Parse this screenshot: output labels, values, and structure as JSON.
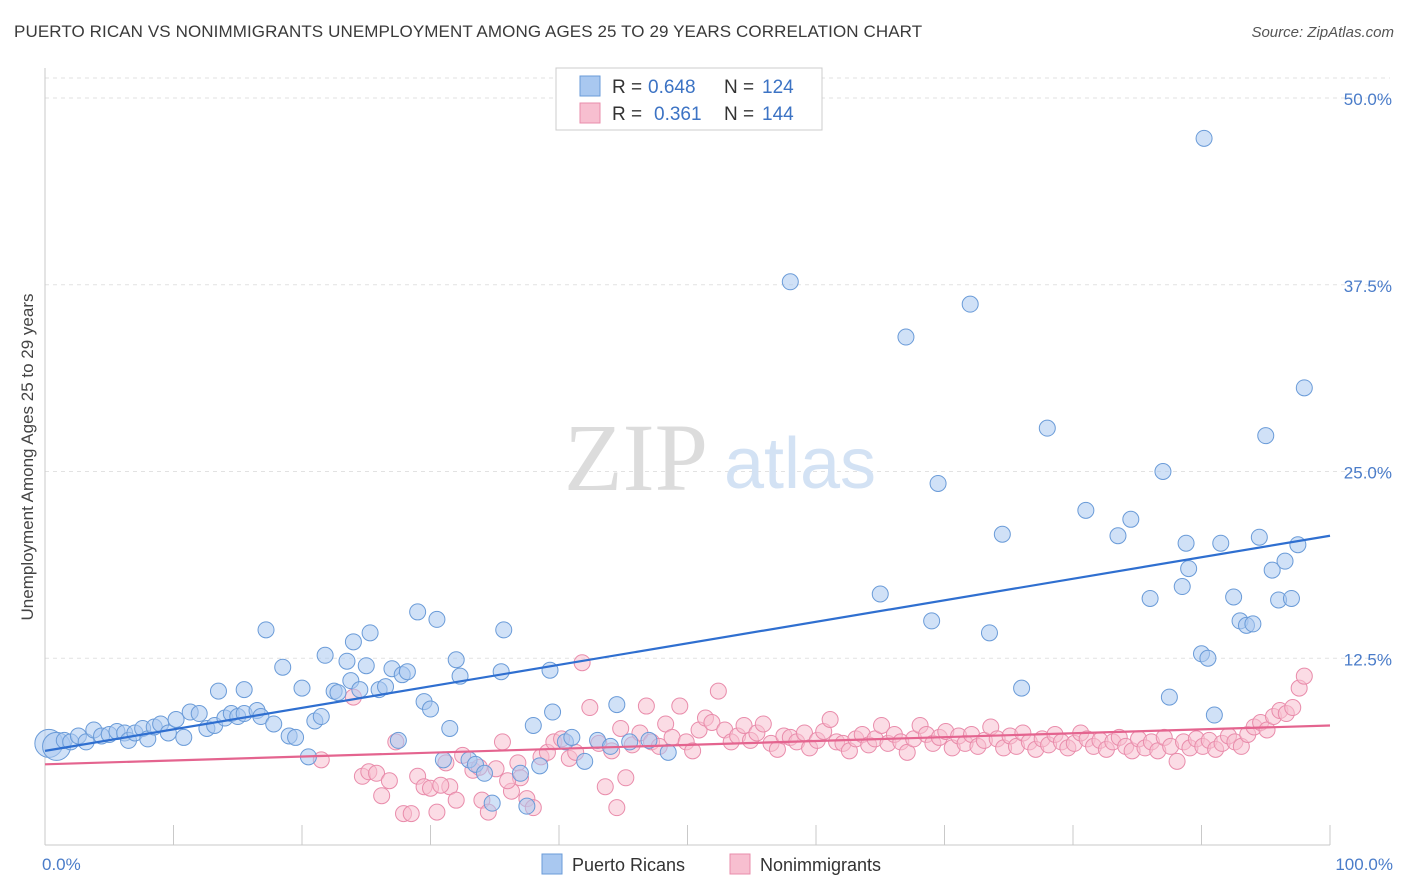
{
  "title": "PUERTO RICAN VS NONIMMIGRANTS UNEMPLOYMENT AMONG AGES 25 TO 29 YEARS CORRELATION CHART",
  "source": "Source: ZipAtlas.com",
  "watermark": {
    "zip": "ZIP",
    "atlas": "atlas"
  },
  "colors": {
    "blue_fill": "#a9c8f0",
    "blue_stroke": "#6a9bd8",
    "blue_line": "#2f6fd0",
    "pink_fill": "#f7bfd0",
    "pink_stroke": "#e98cab",
    "pink_line": "#e4648f",
    "tick_text": "#4a7cc9",
    "grid": "#d8d8d8"
  },
  "legend": {
    "rows": [
      {
        "r_label": "R =",
        "r_value": "0.648",
        "n_label": "N =",
        "n_value": "124"
      },
      {
        "r_label": "R =",
        "r_value": "0.361",
        "n_label": "N =",
        "n_value": "144"
      }
    ]
  },
  "chart_data": {
    "type": "scatter",
    "title": "PUERTO RICAN VS NONIMMIGRANTS UNEMPLOYMENT AMONG AGES 25 TO 29 YEARS CORRELATION CHART",
    "xlabel": "",
    "ylabel": "Unemployment Among Ages 25 to 29 years",
    "xlim": [
      0,
      100
    ],
    "ylim": [
      0,
      50
    ],
    "x_tick_labels": [
      {
        "value": 0,
        "label": "0.0%"
      },
      {
        "value": 100,
        "label": "100.0%"
      }
    ],
    "y_tick_labels": [
      {
        "value": 12.5,
        "label": "12.5%"
      },
      {
        "value": 25,
        "label": "25.0%"
      },
      {
        "value": 37.5,
        "label": "37.5%"
      },
      {
        "value": 50,
        "label": "50.0%"
      }
    ],
    "grid": "horizontal dashed",
    "legend_placement": "top-center",
    "series": [
      {
        "name": "Puerto Ricans",
        "color": "#a9c8f0",
        "stat": {
          "r": 0.648,
          "n": 124
        },
        "trend": {
          "x": [
            0,
            100
          ],
          "y": [
            6.3,
            20.7
          ]
        },
        "points": [
          [
            0.3,
            6.8,
            "L"
          ],
          [
            0.9,
            6.6,
            "L"
          ],
          [
            1.5,
            7.0
          ],
          [
            2.0,
            6.9
          ],
          [
            2.6,
            7.3
          ],
          [
            3.2,
            6.9
          ],
          [
            3.8,
            7.7
          ],
          [
            4.4,
            7.3
          ],
          [
            5.0,
            7.4
          ],
          [
            5.6,
            7.6
          ],
          [
            6.2,
            7.5
          ],
          [
            6.5,
            7.0
          ],
          [
            7.0,
            7.5
          ],
          [
            7.6,
            7.8
          ],
          [
            8.0,
            7.1
          ],
          [
            8.5,
            7.9
          ],
          [
            9.0,
            8.1
          ],
          [
            9.6,
            7.5
          ],
          [
            10.2,
            8.4
          ],
          [
            10.8,
            7.2
          ],
          [
            11.3,
            8.9
          ],
          [
            12.0,
            8.8
          ],
          [
            12.6,
            7.8
          ],
          [
            13.2,
            8.0
          ],
          [
            13.5,
            10.3
          ],
          [
            14.0,
            8.5
          ],
          [
            14.5,
            8.8
          ],
          [
            15.0,
            8.6
          ],
          [
            15.5,
            8.8
          ],
          [
            15.5,
            10.4
          ],
          [
            16.5,
            9.0
          ],
          [
            16.8,
            8.6
          ],
          [
            17.2,
            14.4
          ],
          [
            17.8,
            8.1
          ],
          [
            18.5,
            11.9
          ],
          [
            19.0,
            7.3
          ],
          [
            19.5,
            7.2
          ],
          [
            20.0,
            10.5
          ],
          [
            20.5,
            5.9
          ],
          [
            21.0,
            8.3
          ],
          [
            21.5,
            8.6
          ],
          [
            21.8,
            12.7
          ],
          [
            22.5,
            10.3
          ],
          [
            22.8,
            10.2
          ],
          [
            23.5,
            12.3
          ],
          [
            23.8,
            11.0
          ],
          [
            24.0,
            13.6
          ],
          [
            24.5,
            10.4
          ],
          [
            25.0,
            12.0
          ],
          [
            25.3,
            14.2
          ],
          [
            26.0,
            10.4
          ],
          [
            26.5,
            10.6
          ],
          [
            27.0,
            11.8
          ],
          [
            27.5,
            7.0
          ],
          [
            27.8,
            11.4
          ],
          [
            28.2,
            11.6
          ],
          [
            29.0,
            15.6
          ],
          [
            29.5,
            9.6
          ],
          [
            30.0,
            9.1
          ],
          [
            30.5,
            15.1
          ],
          [
            31.0,
            5.7
          ],
          [
            31.5,
            7.8
          ],
          [
            32.0,
            12.4
          ],
          [
            32.3,
            11.3
          ],
          [
            33.0,
            5.7
          ],
          [
            33.5,
            5.4
          ],
          [
            34.2,
            4.8
          ],
          [
            34.8,
            2.8
          ],
          [
            35.5,
            11.6
          ],
          [
            35.7,
            14.4
          ],
          [
            37.0,
            4.8
          ],
          [
            37.5,
            2.6
          ],
          [
            38.0,
            8.0
          ],
          [
            38.5,
            5.3
          ],
          [
            39.3,
            11.7
          ],
          [
            39.5,
            8.9
          ],
          [
            40.5,
            6.9
          ],
          [
            41.0,
            7.2
          ],
          [
            42.0,
            5.6
          ],
          [
            43.0,
            7.0
          ],
          [
            44.0,
            6.6
          ],
          [
            44.5,
            9.4
          ],
          [
            45.5,
            6.9
          ],
          [
            47.0,
            7.0
          ],
          [
            48.5,
            6.2
          ],
          [
            58.0,
            37.7
          ],
          [
            65.0,
            16.8
          ],
          [
            67.0,
            34.0
          ],
          [
            69.0,
            15.0
          ],
          [
            69.5,
            24.2
          ],
          [
            72.0,
            36.2
          ],
          [
            73.5,
            14.2
          ],
          [
            74.5,
            20.8
          ],
          [
            76.0,
            10.5
          ],
          [
            78.0,
            27.9
          ],
          [
            81.0,
            22.4
          ],
          [
            83.5,
            20.7
          ],
          [
            84.5,
            21.8
          ],
          [
            86.0,
            16.5
          ],
          [
            87.0,
            25.0
          ],
          [
            87.5,
            9.9
          ],
          [
            88.5,
            17.3
          ],
          [
            88.8,
            20.2
          ],
          [
            89.0,
            18.5
          ],
          [
            90.0,
            12.8
          ],
          [
            90.5,
            12.5
          ],
          [
            91.0,
            8.7
          ],
          [
            91.5,
            20.2
          ],
          [
            92.5,
            16.6
          ],
          [
            93.0,
            15.0
          ],
          [
            93.5,
            14.7
          ],
          [
            94.0,
            14.8
          ],
          [
            94.5,
            20.6
          ],
          [
            95.0,
            27.4
          ],
          [
            95.5,
            18.4
          ],
          [
            96.0,
            16.4
          ],
          [
            96.5,
            19.0
          ],
          [
            97.0,
            16.5
          ],
          [
            97.5,
            20.1
          ],
          [
            98.0,
            30.6
          ],
          [
            90.2,
            47.3
          ]
        ]
      },
      {
        "name": "Nonimmigrants",
        "color": "#f7bfd0",
        "stat": {
          "r": 0.361,
          "n": 144
        },
        "trend": {
          "x": [
            0,
            100
          ],
          "y": [
            5.4,
            8.0
          ]
        },
        "points": [
          [
            21.5,
            5.7
          ],
          [
            24.0,
            9.9
          ],
          [
            24.7,
            4.6
          ],
          [
            25.2,
            4.9
          ],
          [
            25.8,
            4.8
          ],
          [
            26.2,
            3.3
          ],
          [
            26.8,
            4.3
          ],
          [
            27.3,
            6.9
          ],
          [
            27.9,
            2.1
          ],
          [
            28.5,
            2.1
          ],
          [
            29.0,
            4.6
          ],
          [
            29.5,
            3.9
          ],
          [
            30.0,
            3.8
          ],
          [
            30.5,
            2.2
          ],
          [
            31.2,
            5.5
          ],
          [
            31.5,
            3.9
          ],
          [
            32.0,
            3.0
          ],
          [
            32.5,
            6.0
          ],
          [
            33.3,
            5.0
          ],
          [
            34.0,
            3.0
          ],
          [
            34.5,
            2.2
          ],
          [
            35.1,
            5.1
          ],
          [
            35.6,
            6.9
          ],
          [
            36.3,
            3.6
          ],
          [
            36.8,
            5.5
          ],
          [
            37.5,
            3.1
          ],
          [
            38.0,
            2.5
          ],
          [
            38.6,
            5.9
          ],
          [
            39.1,
            6.2
          ],
          [
            39.6,
            6.9
          ],
          [
            40.2,
            7.1
          ],
          [
            40.8,
            5.8
          ],
          [
            41.3,
            6.2
          ],
          [
            41.8,
            12.2
          ],
          [
            42.4,
            9.2
          ],
          [
            43.1,
            6.8
          ],
          [
            43.6,
            3.9
          ],
          [
            44.1,
            6.3
          ],
          [
            44.8,
            7.8
          ],
          [
            45.2,
            4.5
          ],
          [
            45.7,
            6.7
          ],
          [
            46.3,
            7.5
          ],
          [
            46.8,
            9.3
          ],
          [
            47.2,
            6.9
          ],
          [
            47.8,
            6.6
          ],
          [
            48.3,
            8.1
          ],
          [
            48.8,
            7.2
          ],
          [
            49.4,
            9.3
          ],
          [
            49.9,
            6.9
          ],
          [
            50.4,
            6.3
          ],
          [
            50.9,
            7.7
          ],
          [
            51.4,
            8.5
          ],
          [
            51.9,
            8.2
          ],
          [
            52.4,
            10.3
          ],
          [
            52.9,
            7.7
          ],
          [
            53.4,
            6.9
          ],
          [
            53.9,
            7.3
          ],
          [
            54.4,
            8.0
          ],
          [
            54.9,
            7.0
          ],
          [
            55.4,
            7.5
          ],
          [
            55.9,
            8.1
          ],
          [
            56.5,
            6.8
          ],
          [
            57.0,
            6.4
          ],
          [
            57.5,
            7.3
          ],
          [
            58.0,
            7.2
          ],
          [
            58.5,
            6.9
          ],
          [
            59.1,
            7.5
          ],
          [
            59.5,
            6.5
          ],
          [
            60.1,
            7.0
          ],
          [
            60.6,
            7.6
          ],
          [
            61.1,
            8.4
          ],
          [
            61.6,
            6.9
          ],
          [
            62.1,
            6.8
          ],
          [
            62.6,
            6.3
          ],
          [
            63.1,
            7.1
          ],
          [
            63.6,
            7.4
          ],
          [
            64.1,
            6.7
          ],
          [
            64.6,
            7.1
          ],
          [
            65.1,
            8.0
          ],
          [
            65.6,
            6.8
          ],
          [
            66.1,
            7.4
          ],
          [
            66.6,
            6.9
          ],
          [
            67.1,
            6.2
          ],
          [
            67.6,
            7.1
          ],
          [
            68.1,
            8.0
          ],
          [
            68.6,
            7.4
          ],
          [
            69.1,
            6.8
          ],
          [
            69.6,
            7.2
          ],
          [
            70.1,
            7.6
          ],
          [
            70.6,
            6.5
          ],
          [
            71.1,
            7.3
          ],
          [
            71.6,
            6.8
          ],
          [
            72.1,
            7.4
          ],
          [
            72.6,
            6.6
          ],
          [
            73.1,
            7.0
          ],
          [
            73.6,
            7.9
          ],
          [
            74.1,
            7.1
          ],
          [
            74.6,
            6.5
          ],
          [
            75.1,
            7.3
          ],
          [
            75.6,
            6.6
          ],
          [
            76.1,
            7.5
          ],
          [
            76.6,
            6.9
          ],
          [
            77.1,
            6.4
          ],
          [
            77.6,
            7.1
          ],
          [
            78.1,
            6.7
          ],
          [
            78.6,
            7.4
          ],
          [
            79.1,
            6.9
          ],
          [
            79.6,
            6.5
          ],
          [
            80.1,
            6.8
          ],
          [
            80.6,
            7.5
          ],
          [
            81.1,
            7.1
          ],
          [
            81.6,
            6.6
          ],
          [
            82.1,
            7.0
          ],
          [
            82.6,
            6.4
          ],
          [
            83.1,
            6.9
          ],
          [
            83.6,
            7.2
          ],
          [
            84.1,
            6.6
          ],
          [
            84.6,
            6.3
          ],
          [
            85.1,
            7.1
          ],
          [
            85.6,
            6.5
          ],
          [
            86.1,
            6.9
          ],
          [
            86.6,
            6.3
          ],
          [
            87.1,
            7.2
          ],
          [
            87.6,
            6.6
          ],
          [
            88.1,
            5.6
          ],
          [
            88.6,
            6.9
          ],
          [
            89.1,
            6.5
          ],
          [
            89.6,
            7.1
          ],
          [
            90.1,
            6.6
          ],
          [
            90.6,
            7.0
          ],
          [
            91.1,
            6.4
          ],
          [
            91.6,
            6.8
          ],
          [
            92.1,
            7.3
          ],
          [
            92.6,
            6.9
          ],
          [
            93.1,
            6.6
          ],
          [
            93.6,
            7.4
          ],
          [
            94.1,
            7.9
          ],
          [
            94.6,
            8.2
          ],
          [
            95.1,
            7.7
          ],
          [
            95.6,
            8.6
          ],
          [
            96.1,
            9.0
          ],
          [
            96.6,
            8.8
          ],
          [
            97.1,
            9.2
          ],
          [
            97.6,
            10.5
          ],
          [
            98.0,
            11.3
          ],
          [
            37.0,
            4.5
          ],
          [
            36.0,
            4.3
          ],
          [
            33.8,
            5.2
          ],
          [
            44.5,
            2.5
          ],
          [
            30.8,
            4.0
          ]
        ]
      }
    ]
  },
  "bottom_legend": [
    {
      "label": "Puerto Ricans"
    },
    {
      "label": "Nonimmigrants"
    }
  ]
}
